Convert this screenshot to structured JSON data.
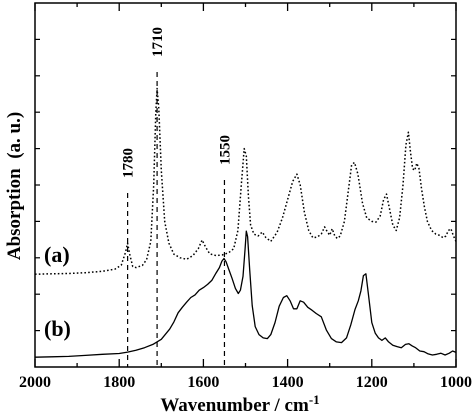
{
  "chart_data": {
    "type": "line",
    "xlabel": "Wavenumber / cm",
    "xlabel_superscript": "-1",
    "ylabel": "Absorption  (a. u.)",
    "xlim": [
      2000,
      1000
    ],
    "ylim": [
      0,
      100
    ],
    "x_reversed": true,
    "x_ticks": [
      2000,
      1800,
      1600,
      1400,
      1200,
      1000
    ],
    "y_ticks_labeled": false,
    "grid": false,
    "peak_markers": [
      {
        "label": "1780",
        "x": 1780
      },
      {
        "label": "1710",
        "x": 1710
      },
      {
        "label": "1550",
        "x": 1550
      }
    ],
    "series": [
      {
        "name": "(a)",
        "style": "dotted",
        "points": [
          [
            2000,
            25.5
          ],
          [
            1960,
            25.6
          ],
          [
            1920,
            25.7
          ],
          [
            1880,
            25.9
          ],
          [
            1840,
            26.3
          ],
          [
            1810,
            26.9
          ],
          [
            1795,
            28.0
          ],
          [
            1785,
            31.5
          ],
          [
            1780,
            34.0
          ],
          [
            1775,
            31.0
          ],
          [
            1768,
            27.6
          ],
          [
            1760,
            27.3
          ],
          [
            1745,
            27.9
          ],
          [
            1735,
            29.5
          ],
          [
            1725,
            34.5
          ],
          [
            1718,
            50.0
          ],
          [
            1713,
            70.0
          ],
          [
            1710,
            76.5
          ],
          [
            1706,
            71.0
          ],
          [
            1700,
            54.0
          ],
          [
            1692,
            40.0
          ],
          [
            1682,
            34.0
          ],
          [
            1670,
            31.0
          ],
          [
            1655,
            30.0
          ],
          [
            1640,
            29.6
          ],
          [
            1625,
            30.6
          ],
          [
            1612,
            32.5
          ],
          [
            1603,
            34.9
          ],
          [
            1595,
            33.0
          ],
          [
            1585,
            31.1
          ],
          [
            1570,
            30.6
          ],
          [
            1555,
            30.8
          ],
          [
            1540,
            31.4
          ],
          [
            1528,
            32.5
          ],
          [
            1518,
            37.5
          ],
          [
            1510,
            50.0
          ],
          [
            1503,
            60.0
          ],
          [
            1498,
            58.0
          ],
          [
            1493,
            47.0
          ],
          [
            1488,
            39.0
          ],
          [
            1480,
            36.5
          ],
          [
            1470,
            36.0
          ],
          [
            1460,
            37.1
          ],
          [
            1452,
            35.6
          ],
          [
            1440,
            34.5
          ],
          [
            1425,
            37.0
          ],
          [
            1412,
            41.0
          ],
          [
            1400,
            46.0
          ],
          [
            1388,
            51.0
          ],
          [
            1378,
            53.0
          ],
          [
            1370,
            50.0
          ],
          [
            1360,
            42.5
          ],
          [
            1350,
            37.5
          ],
          [
            1340,
            35.5
          ],
          [
            1330,
            35.7
          ],
          [
            1320,
            36.5
          ],
          [
            1312,
            38.5
          ],
          [
            1306,
            37.2
          ],
          [
            1300,
            36.2
          ],
          [
            1294,
            38.0
          ],
          [
            1288,
            36.0
          ],
          [
            1282,
            35.3
          ],
          [
            1275,
            36.0
          ],
          [
            1265,
            40.0
          ],
          [
            1255,
            49.0
          ],
          [
            1248,
            55.5
          ],
          [
            1241,
            56.2
          ],
          [
            1233,
            53.0
          ],
          [
            1222,
            45.0
          ],
          [
            1212,
            41.0
          ],
          [
            1200,
            40.0
          ],
          [
            1190,
            39.8
          ],
          [
            1180,
            41.5
          ],
          [
            1172,
            46.0
          ],
          [
            1165,
            47.5
          ],
          [
            1158,
            43.5
          ],
          [
            1150,
            39.0
          ],
          [
            1142,
            37.5
          ],
          [
            1134,
            41.0
          ],
          [
            1126,
            50.0
          ],
          [
            1119,
            61.0
          ],
          [
            1113,
            64.5
          ],
          [
            1108,
            59.0
          ],
          [
            1103,
            54.5
          ],
          [
            1098,
            54.0
          ],
          [
            1093,
            56.0
          ],
          [
            1088,
            54.5
          ],
          [
            1082,
            49.0
          ],
          [
            1075,
            44.0
          ],
          [
            1068,
            40.0
          ],
          [
            1058,
            37.5
          ],
          [
            1048,
            36.5
          ],
          [
            1040,
            36.2
          ],
          [
            1030,
            35.5
          ],
          [
            1024,
            36.0
          ],
          [
            1018,
            37.5
          ],
          [
            1012,
            38.0
          ],
          [
            1006,
            36.0
          ],
          [
            1000,
            34.5
          ]
        ]
      },
      {
        "name": "(b)",
        "style": "solid",
        "points": [
          [
            2000,
            2.7
          ],
          [
            1960,
            2.8
          ],
          [
            1920,
            2.9
          ],
          [
            1880,
            3.2
          ],
          [
            1840,
            3.5
          ],
          [
            1800,
            3.7
          ],
          [
            1780,
            4.1
          ],
          [
            1760,
            4.6
          ],
          [
            1740,
            5.3
          ],
          [
            1720,
            6.2
          ],
          [
            1700,
            7.6
          ],
          [
            1690,
            9.0
          ],
          [
            1680,
            10.4
          ],
          [
            1670,
            12.4
          ],
          [
            1660,
            14.9
          ],
          [
            1650,
            16.4
          ],
          [
            1640,
            17.8
          ],
          [
            1630,
            19.1
          ],
          [
            1620,
            19.8
          ],
          [
            1610,
            21.1
          ],
          [
            1600,
            21.8
          ],
          [
            1590,
            22.7
          ],
          [
            1580,
            23.8
          ],
          [
            1570,
            25.8
          ],
          [
            1562,
            27.3
          ],
          [
            1556,
            29.1
          ],
          [
            1551,
            29.8
          ],
          [
            1546,
            28.9
          ],
          [
            1540,
            26.9
          ],
          [
            1532,
            24.4
          ],
          [
            1524,
            21.6
          ],
          [
            1517,
            20.2
          ],
          [
            1512,
            21.1
          ],
          [
            1506,
            24.9
          ],
          [
            1501,
            32.5
          ],
          [
            1498,
            37.3
          ],
          [
            1495,
            35.8
          ],
          [
            1490,
            26.7
          ],
          [
            1484,
            16.9
          ],
          [
            1477,
            11.1
          ],
          [
            1468,
            8.9
          ],
          [
            1458,
            8.0
          ],
          [
            1448,
            7.8
          ],
          [
            1440,
            8.9
          ],
          [
            1430,
            12.2
          ],
          [
            1420,
            16.7
          ],
          [
            1410,
            19.1
          ],
          [
            1402,
            19.6
          ],
          [
            1394,
            18.2
          ],
          [
            1386,
            16.0
          ],
          [
            1378,
            16.0
          ],
          [
            1370,
            18.2
          ],
          [
            1362,
            17.8
          ],
          [
            1352,
            16.4
          ],
          [
            1342,
            15.6
          ],
          [
            1332,
            14.7
          ],
          [
            1320,
            13.8
          ],
          [
            1308,
            10.2
          ],
          [
            1296,
            7.8
          ],
          [
            1284,
            6.9
          ],
          [
            1272,
            6.7
          ],
          [
            1260,
            8.0
          ],
          [
            1250,
            11.6
          ],
          [
            1240,
            15.8
          ],
          [
            1232,
            18.2
          ],
          [
            1226,
            20.9
          ],
          [
            1220,
            25.1
          ],
          [
            1214,
            25.6
          ],
          [
            1208,
            20.0
          ],
          [
            1200,
            12.2
          ],
          [
            1192,
            9.3
          ],
          [
            1184,
            8.0
          ],
          [
            1176,
            7.3
          ],
          [
            1168,
            8.0
          ],
          [
            1160,
            6.9
          ],
          [
            1150,
            6.0
          ],
          [
            1140,
            5.6
          ],
          [
            1130,
            5.3
          ],
          [
            1120,
            6.2
          ],
          [
            1112,
            6.4
          ],
          [
            1104,
            5.8
          ],
          [
            1096,
            5.3
          ],
          [
            1086,
            4.4
          ],
          [
            1076,
            4.2
          ],
          [
            1066,
            3.6
          ],
          [
            1056,
            3.3
          ],
          [
            1046,
            3.5
          ],
          [
            1036,
            3.8
          ],
          [
            1026,
            3.3
          ],
          [
            1016,
            3.8
          ],
          [
            1008,
            4.4
          ],
          [
            1000,
            4.0
          ]
        ]
      }
    ]
  }
}
